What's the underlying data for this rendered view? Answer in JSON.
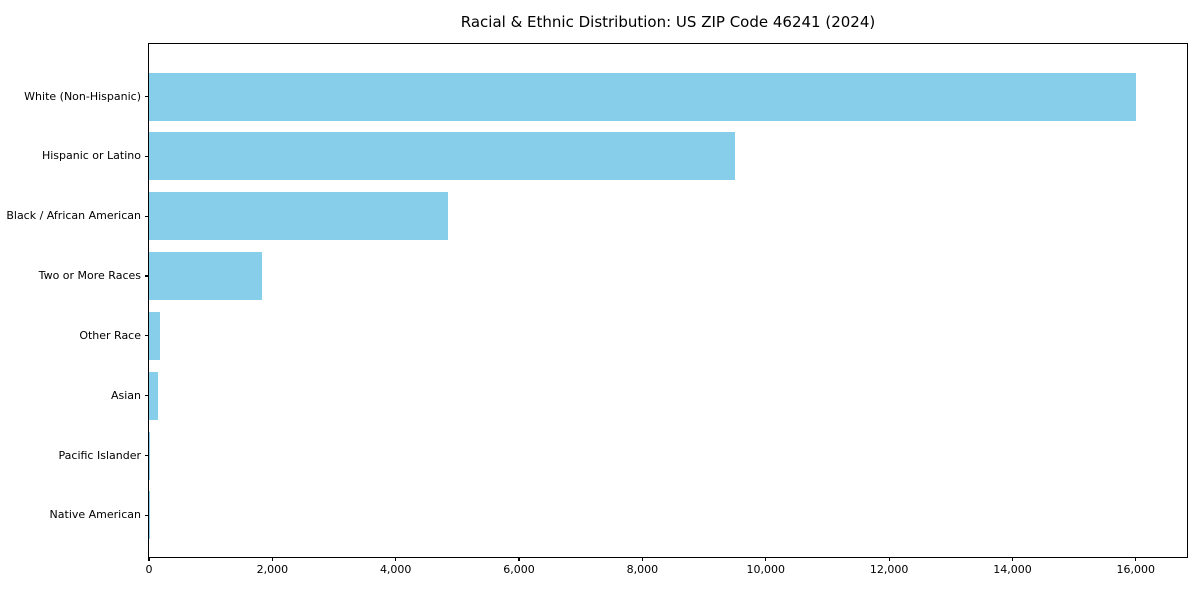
{
  "title": "Racial & Ethnic Distribution: US ZIP Code 46241 (2024)",
  "colors": {
    "bar": "#87CEEB",
    "axis": "#000000",
    "background": "#FFFFFF",
    "text": "#000000"
  },
  "chart_data": {
    "type": "bar",
    "orientation": "horizontal",
    "title": "Racial & Ethnic Distribution: US ZIP Code 46241 (2024)",
    "categories": [
      "White (Non-Hispanic)",
      "Hispanic or Latino",
      "Black / African American",
      "Two or More Races",
      "Other Race",
      "Asian",
      "Pacific Islander",
      "Native American"
    ],
    "values": [
      16000,
      9500,
      4850,
      1830,
      170,
      150,
      20,
      10
    ],
    "xlabel": "",
    "ylabel": "",
    "xlim": [
      0,
      16830
    ],
    "x_ticks": [
      0,
      2000,
      4000,
      6000,
      8000,
      10000,
      12000,
      14000,
      16000
    ],
    "x_tick_labels": [
      "0",
      "2,000",
      "4,000",
      "6,000",
      "8,000",
      "10,000",
      "12,000",
      "14,000",
      "16,000"
    ],
    "grid": false,
    "legend": null,
    "bar_color": "#87CEEB"
  }
}
